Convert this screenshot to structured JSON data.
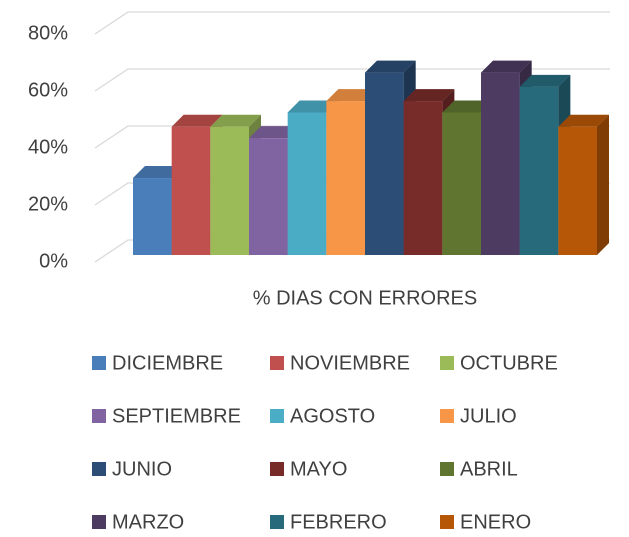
{
  "chart_data": {
    "type": "bar3d",
    "categories": [
      "% DIAS CON ERRORES"
    ],
    "series": [
      {
        "name": "DICIEMBRE",
        "color": "#4a7ebb",
        "values": [
          27
        ]
      },
      {
        "name": "NOVIEMBRE",
        "color": "#c0504d",
        "values": [
          45
        ]
      },
      {
        "name": "OCTUBRE",
        "color": "#9bbb59",
        "values": [
          45
        ]
      },
      {
        "name": "SEPTIEMBRE",
        "color": "#8064a2",
        "values": [
          41
        ]
      },
      {
        "name": "AGOSTO",
        "color": "#4bacc6",
        "values": [
          50
        ]
      },
      {
        "name": "JULIO",
        "color": "#f79646",
        "values": [
          54
        ]
      },
      {
        "name": "JUNIO",
        "color": "#2c4d75",
        "values": [
          64
        ]
      },
      {
        "name": "MAYO",
        "color": "#772c2a",
        "values": [
          54
        ]
      },
      {
        "name": "ABRIL",
        "color": "#5f7530",
        "values": [
          50
        ]
      },
      {
        "name": "MARZO",
        "color": "#4d3b62",
        "values": [
          64
        ]
      },
      {
        "name": "FEBRERO",
        "color": "#276a7c",
        "values": [
          59
        ]
      },
      {
        "name": "ENERO",
        "color": "#b65708",
        "values": [
          45
        ]
      }
    ],
    "ylim": [
      0,
      80
    ],
    "yticks": [
      {
        "value": 0,
        "label": "0%"
      },
      {
        "value": 20,
        "label": "20%"
      },
      {
        "value": 40,
        "label": "40%"
      },
      {
        "value": 60,
        "label": "60%"
      },
      {
        "value": 80,
        "label": "80%"
      }
    ],
    "grid": true,
    "legend": "bottom"
  }
}
